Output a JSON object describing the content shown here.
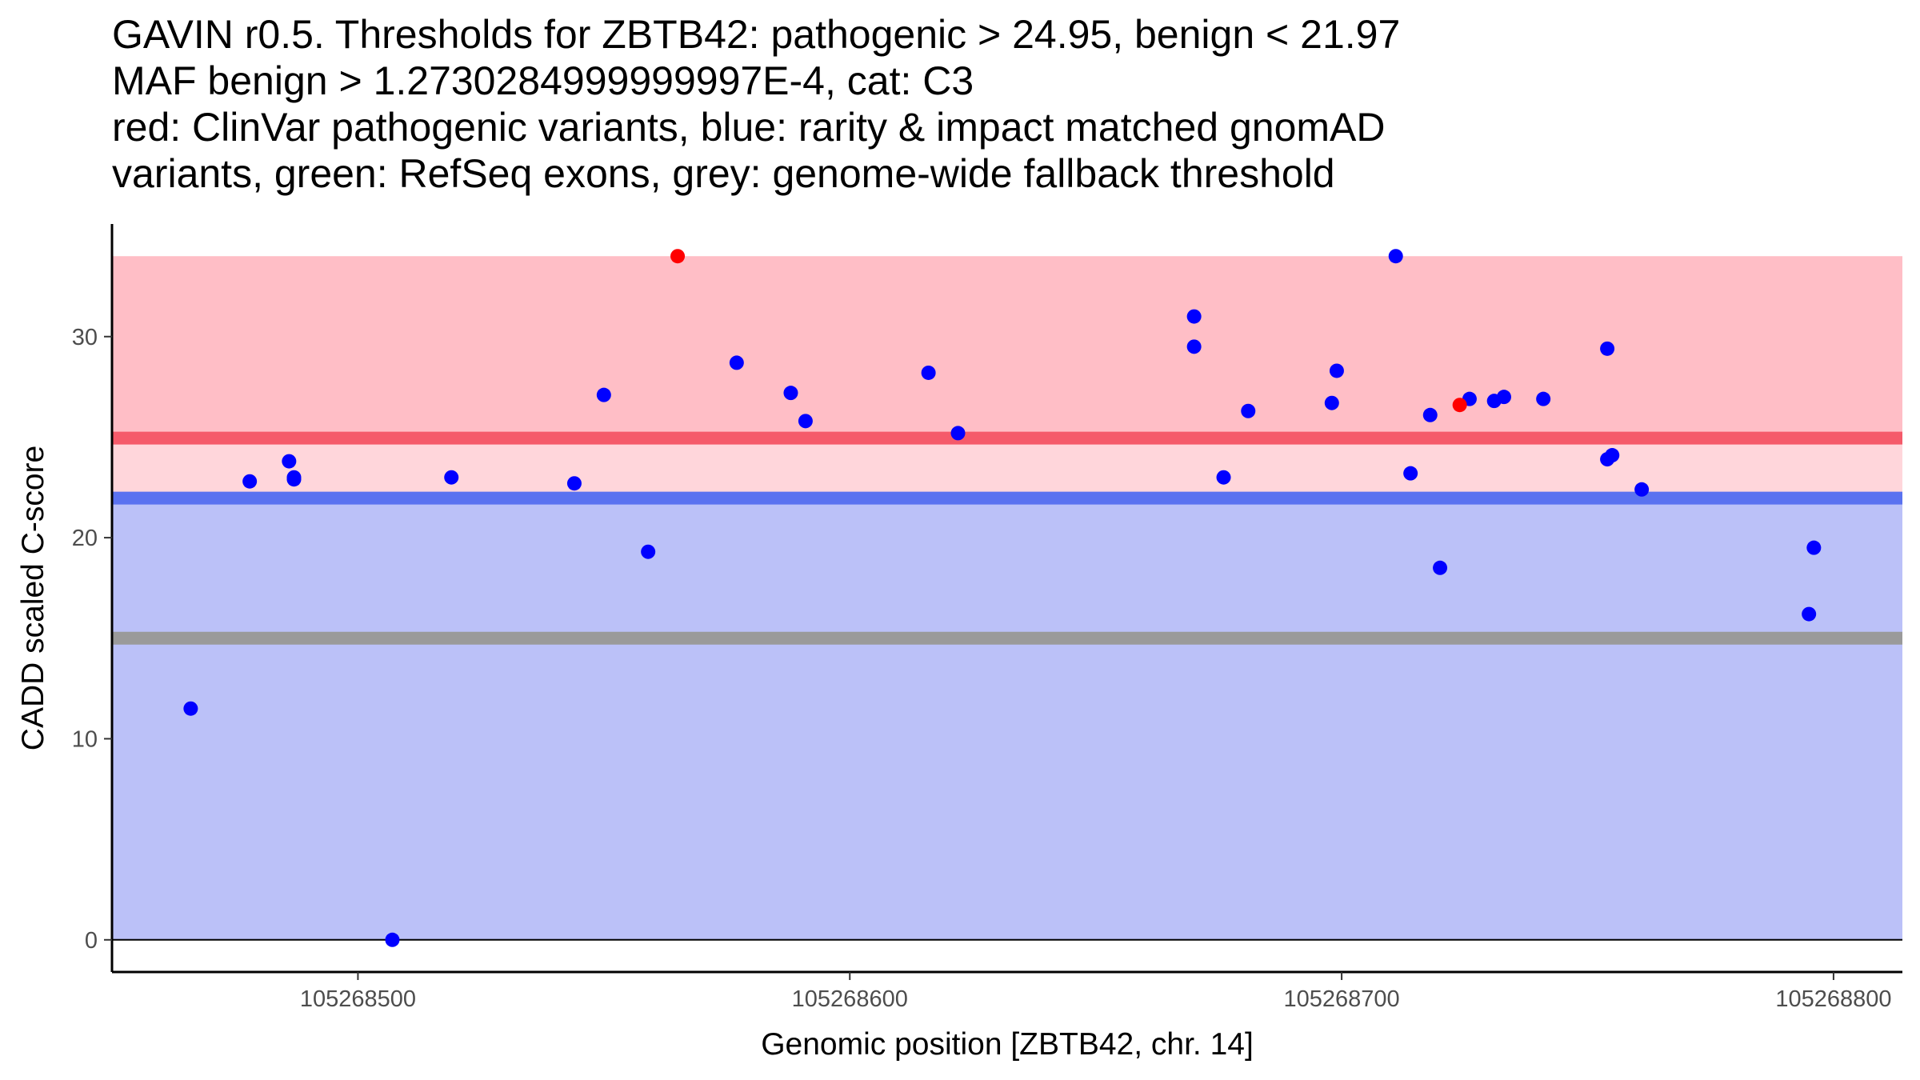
{
  "chart_data": {
    "type": "scatter",
    "title_lines": [
      "GAVIN r0.5. Thresholds for ZBTB42: pathogenic > 24.95, benign < 21.97",
      "MAF benign > 1.2730284999999997E-4, cat: C3",
      "red: ClinVar pathogenic variants, blue: rarity & impact matched gnomAD",
      "variants, green: RefSeq exons, grey: genome-wide fallback threshold"
    ],
    "xlabel": "Genomic position [ZBTB42, chr. 14]",
    "ylabel": "CADD scaled C-score",
    "xlim": [
      105268450,
      105268814
    ],
    "ylim": [
      -1.6,
      35.6
    ],
    "x_ticks": [
      105268500,
      105268600,
      105268700,
      105268800
    ],
    "x_tick_labels": [
      "105268500",
      "105268600",
      "105268700",
      "105268800"
    ],
    "y_ticks": [
      0,
      10,
      20,
      30
    ],
    "y_tick_labels": [
      "0",
      "10",
      "20",
      "30"
    ],
    "thresholds": {
      "pathogenic": 24.95,
      "benign": 21.97,
      "genome_wide_fallback": 15
    },
    "regions": [
      {
        "name": "pathogenic-region",
        "from": 24.95,
        "to": 34,
        "color": "#FFBEC6"
      },
      {
        "name": "intermediate-region",
        "from": 21.97,
        "to": 24.95,
        "color": "#FFD6DB"
      },
      {
        "name": "benign-region",
        "from": 0,
        "to": 21.97,
        "color": "#BBC1F8"
      }
    ],
    "colors": {
      "pathogenic_line": "#F55A6A",
      "benign_line": "#5A72F0",
      "fallback_line": "#9A9A9A",
      "clinvar": "#FF0000",
      "gnomad": "#0000FF"
    },
    "series": [
      {
        "name": "ClinVar pathogenic",
        "color": "#FF0000",
        "points": [
          {
            "x": 105268565,
            "y": 34.0
          },
          {
            "x": 105268724,
            "y": 26.6
          }
        ]
      },
      {
        "name": "gnomAD matched",
        "color": "#0000FF",
        "points": [
          {
            "x": 105268466,
            "y": 11.5
          },
          {
            "x": 105268478,
            "y": 22.8
          },
          {
            "x": 105268486,
            "y": 23.8
          },
          {
            "x": 105268487,
            "y": 23.0
          },
          {
            "x": 105268487,
            "y": 22.9
          },
          {
            "x": 105268507,
            "y": 0.0
          },
          {
            "x": 105268519,
            "y": 23.0
          },
          {
            "x": 105268544,
            "y": 22.7
          },
          {
            "x": 105268550,
            "y": 27.1
          },
          {
            "x": 105268559,
            "y": 19.3
          },
          {
            "x": 105268577,
            "y": 28.7
          },
          {
            "x": 105268588,
            "y": 27.2
          },
          {
            "x": 105268591,
            "y": 25.8
          },
          {
            "x": 105268616,
            "y": 28.2
          },
          {
            "x": 105268622,
            "y": 25.2
          },
          {
            "x": 105268670,
            "y": 31.0
          },
          {
            "x": 105268670,
            "y": 29.5
          },
          {
            "x": 105268676,
            "y": 23.0
          },
          {
            "x": 105268681,
            "y": 26.3
          },
          {
            "x": 105268698,
            "y": 26.7
          },
          {
            "x": 105268699,
            "y": 28.3
          },
          {
            "x": 105268711,
            "y": 34.0
          },
          {
            "x": 105268714,
            "y": 23.2
          },
          {
            "x": 105268718,
            "y": 26.1
          },
          {
            "x": 105268720,
            "y": 18.5
          },
          {
            "x": 105268726,
            "y": 26.9
          },
          {
            "x": 105268731,
            "y": 26.8
          },
          {
            "x": 105268733,
            "y": 27.0
          },
          {
            "x": 105268741,
            "y": 26.9
          },
          {
            "x": 105268754,
            "y": 29.4
          },
          {
            "x": 105268754,
            "y": 23.9
          },
          {
            "x": 105268755,
            "y": 24.1
          },
          {
            "x": 105268761,
            "y": 22.4
          },
          {
            "x": 105268795,
            "y": 16.2
          },
          {
            "x": 105268796,
            "y": 19.5
          }
        ]
      }
    ]
  }
}
